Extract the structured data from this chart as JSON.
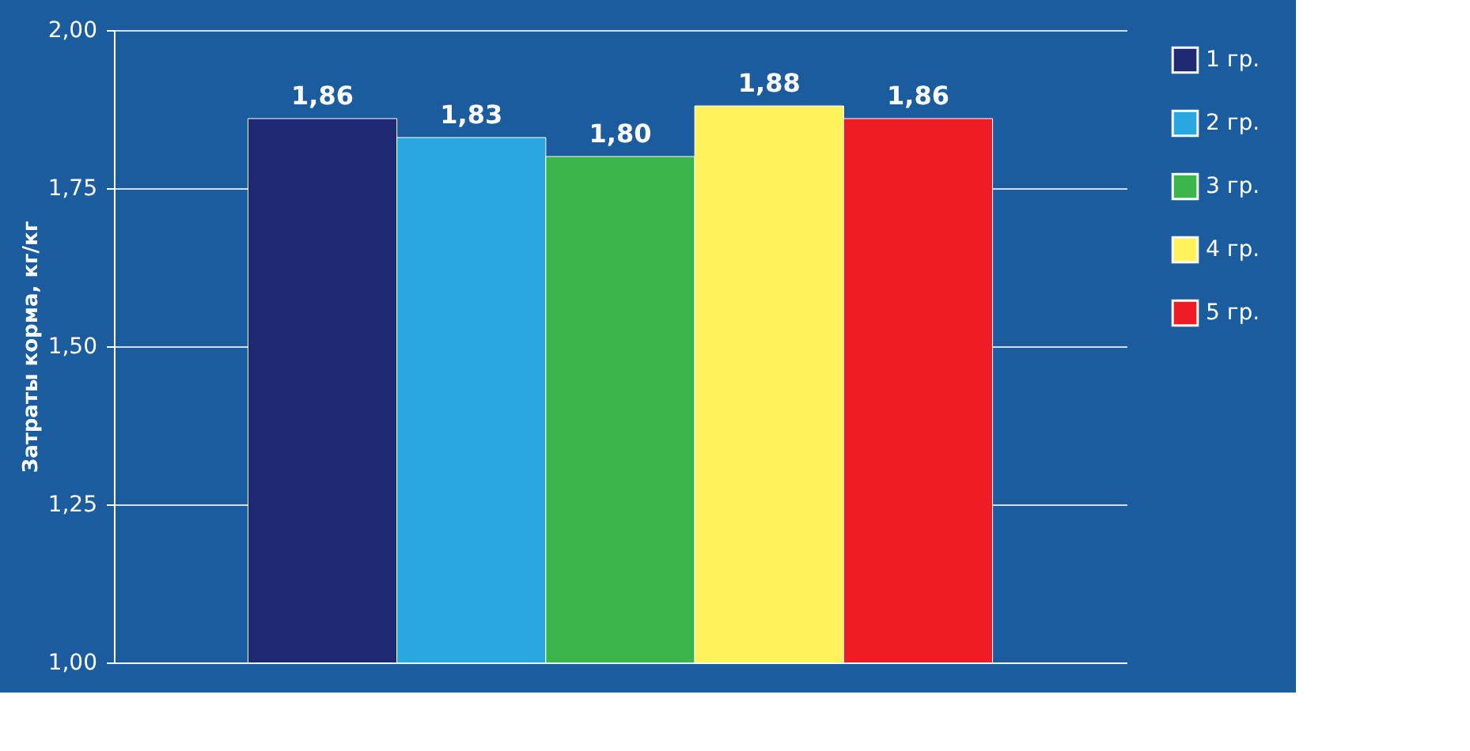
{
  "chart_data": {
    "type": "bar",
    "ylabel": "Затраты корма, кг/кг",
    "categories": [
      null
    ],
    "series": [
      {
        "name": "1 гр.",
        "color": "#1f2a72",
        "values": [
          1.86
        ],
        "value_labels": [
          "1,86"
        ]
      },
      {
        "name": "2 гр.",
        "color": "#29a8e0",
        "values": [
          1.83
        ],
        "value_labels": [
          "1,83"
        ]
      },
      {
        "name": "3 гр.",
        "color": "#3bb44a",
        "values": [
          1.8
        ],
        "value_labels": [
          "1,80"
        ]
      },
      {
        "name": "4 гр.",
        "color": "#fff25a",
        "values": [
          1.88
        ],
        "value_labels": [
          "1,88"
        ]
      },
      {
        "name": "5 гр.",
        "color": "#ee1c25",
        "values": [
          1.86
        ],
        "value_labels": [
          "1,86"
        ]
      }
    ],
    "ylim": [
      1.0,
      2.0
    ],
    "yticks": [
      {
        "value": 1.0,
        "label": "1,00"
      },
      {
        "value": 1.25,
        "label": "1,25"
      },
      {
        "value": 1.5,
        "label": "1,50"
      },
      {
        "value": 1.75,
        "label": "1,75"
      },
      {
        "value": 2.0,
        "label": "2,00"
      }
    ],
    "grid": "y",
    "legend": "right",
    "tick_labels": "y"
  }
}
